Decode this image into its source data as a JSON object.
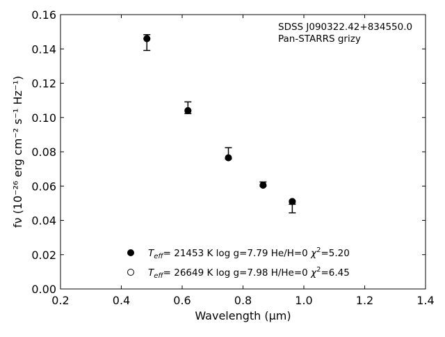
{
  "chart_data": {
    "type": "scatter",
    "xlabel": "Wavelength (μm)",
    "ylabel": "fν (10⁻²⁶ erg cm⁻² s⁻¹ Hz⁻¹)",
    "xlim": [
      0.2,
      1.4
    ],
    "ylim": [
      0.0,
      0.16
    ],
    "x_ticks": [
      "0.2",
      "0.4",
      "0.6",
      "0.8",
      "1.0",
      "1.2",
      "1.4"
    ],
    "y_ticks": [
      "0.00",
      "0.02",
      "0.04",
      "0.06",
      "0.08",
      "0.10",
      "0.12",
      "0.14",
      "0.16"
    ],
    "annotation": [
      "SDSS J090322.42+834550.0",
      "Pan-STARRS grizy"
    ],
    "legend_position": "lower-center",
    "observed": {
      "x": [
        0.484,
        0.619,
        0.752,
        0.866,
        0.962
      ],
      "y": [
        0.1437,
        0.1057,
        0.0791,
        0.0612,
        0.0469
      ],
      "err": [
        0.0046,
        0.0034,
        0.0033,
        0.0012,
        0.0025
      ]
    },
    "series": [
      {
        "name": "Teff= 21453 K  log g=7.79  He/H=0  χ²=5.20",
        "marker": "filled",
        "x": [
          0.484,
          0.619,
          0.752,
          0.866,
          0.962
        ],
        "y": [
          0.146,
          0.104,
          0.0765,
          0.0605,
          0.051
        ]
      },
      {
        "name": "Teff= 26649 K  log g=7.98  H/He=0  χ²=6.45",
        "marker": "open",
        "x": [
          0.484,
          0.619,
          0.752,
          0.866,
          0.962
        ],
        "y": [
          0.146,
          0.104,
          0.0765,
          0.0605,
          0.051
        ]
      }
    ],
    "legend": {
      "entries": [
        {
          "marker": "filled",
          "teff_sym": "T",
          "teff_sub": "eff",
          "text": "= 21453 K  log g=7.79  He/H=0  ",
          "chi_sym": "χ",
          "chi_sup": "2",
          "chi_val": "=5.20"
        },
        {
          "marker": "open",
          "teff_sym": "T",
          "teff_sub": "eff",
          "text": "= 26649 K  log g=7.98  H/He=0  ",
          "chi_sym": "χ",
          "chi_sup": "2",
          "chi_val": "=6.45"
        }
      ]
    }
  }
}
